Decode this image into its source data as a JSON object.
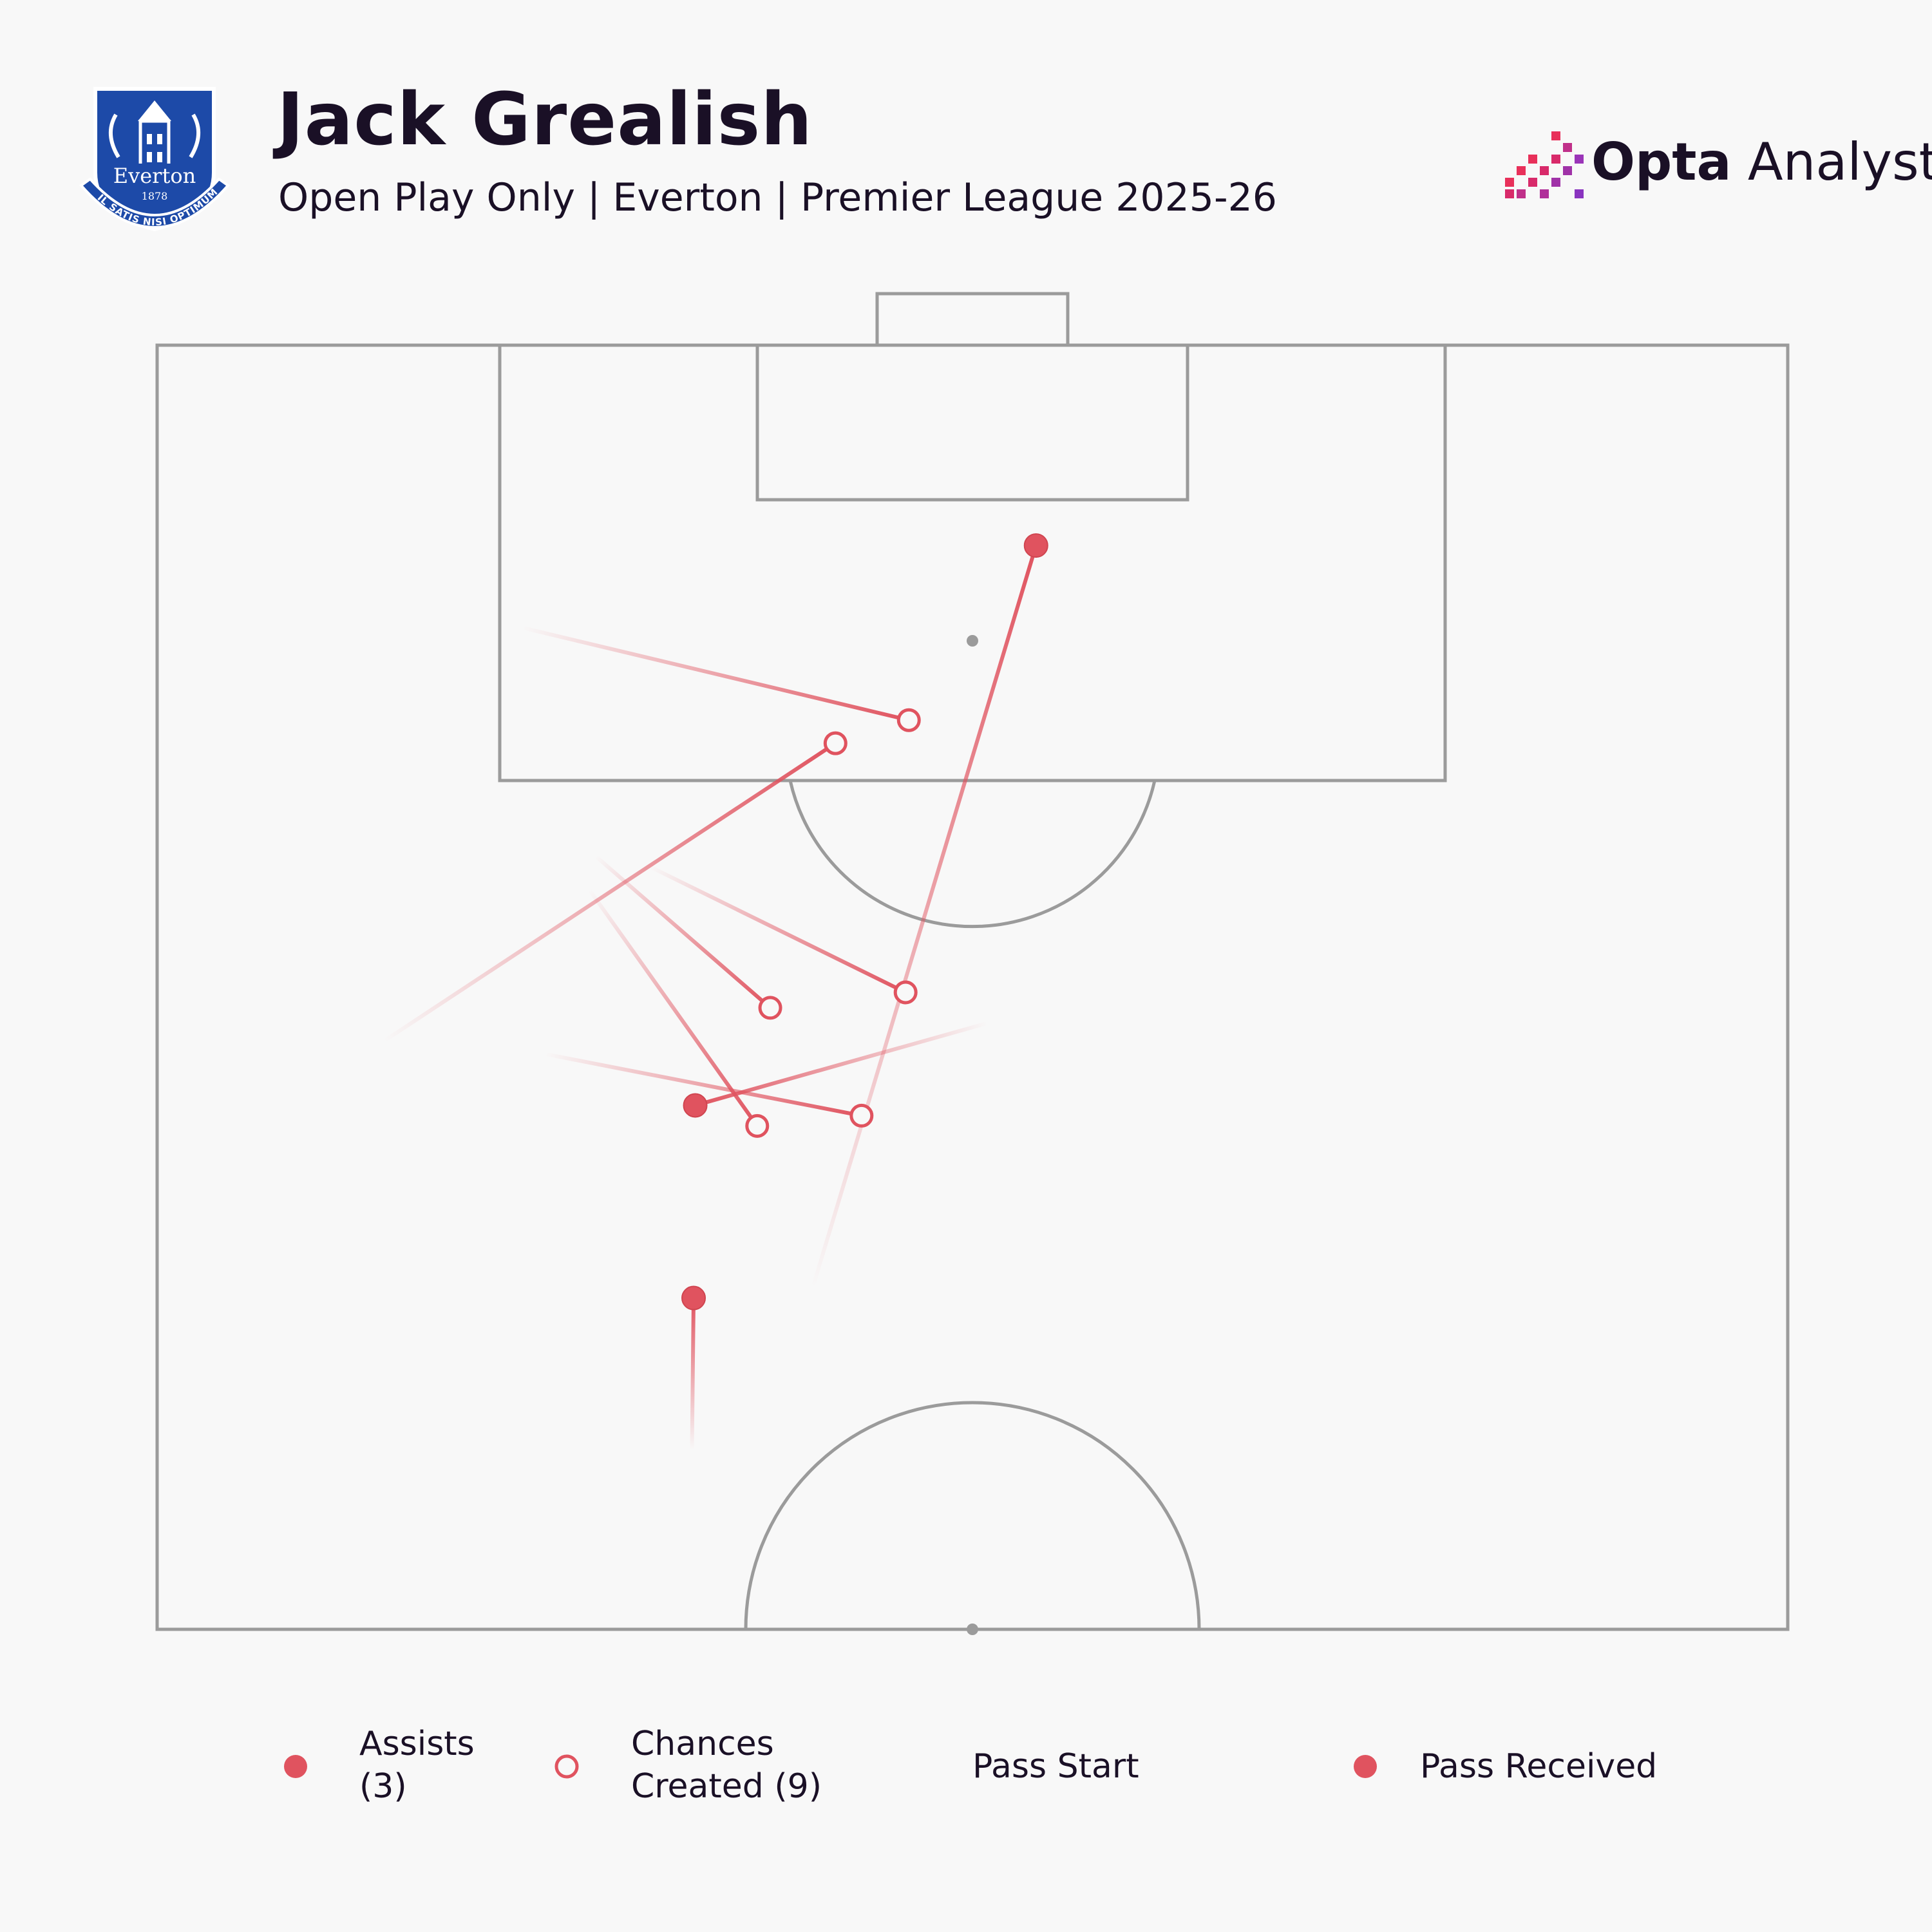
{
  "header": {
    "title": "Jack Grealish",
    "subtitle": "Open Play Only | Everton | Premier League 2025-26",
    "brand_bold": "Opta",
    "brand_light": " Analyst",
    "crest": {
      "name": "Everton",
      "year": "1878",
      "motto": "NIL SATIS NISI OPTIMUM"
    }
  },
  "chart_data": {
    "type": "scatter",
    "title": "Jack Grealish",
    "subtitle": "Open Play Only | Everton | Premier League 2025-26",
    "pitch": {
      "view": "attacking half, vertical, goal at top",
      "x_range": [
        0,
        100
      ],
      "y_range": [
        50,
        100
      ]
    },
    "series": [
      {
        "name": "Assists",
        "count": 3,
        "passes": [
          {
            "start": [
              40.2,
              63.3
            ],
            "end": [
              53.9,
              92.2
            ]
          },
          {
            "start": [
              50.9,
              73.6
            ],
            "end": [
              33.0,
              70.4
            ]
          },
          {
            "start": [
              32.8,
              57.0
            ],
            "end": [
              32.9,
              62.9
            ]
          }
        ]
      },
      {
        "name": "Chances Created",
        "count": 9,
        "passes": [
          {
            "start": [
              22.4,
              89.0
            ],
            "end": [
              46.1,
              85.4
            ]
          },
          {
            "start": [
              13.9,
              72.9
            ],
            "end": [
              41.6,
              84.5
            ]
          },
          {
            "start": [
              30.2,
              79.7
            ],
            "end": [
              45.9,
              74.8
            ]
          },
          {
            "start": [
              26.9,
              80.1
            ],
            "end": [
              37.6,
              74.2
            ]
          },
          {
            "start": [
              26.5,
              78.8
            ],
            "end": [
              36.8,
              69.6
            ]
          },
          {
            "start": [
              23.8,
              72.4
            ],
            "end": [
              43.2,
              70.0
            ]
          }
        ]
      }
    ],
    "legend": {
      "assists_label": "Assists",
      "assists_count": "(3)",
      "chances_label": "Chances",
      "chances_label_2": "Created (9)",
      "pass_start": "Pass Start",
      "pass_received": "Pass Received",
      "placement": "bottom"
    },
    "colors": {
      "marker": "#e0535f",
      "pitch_lines": "#9b9b9b",
      "background": "#f8f8f8"
    }
  }
}
